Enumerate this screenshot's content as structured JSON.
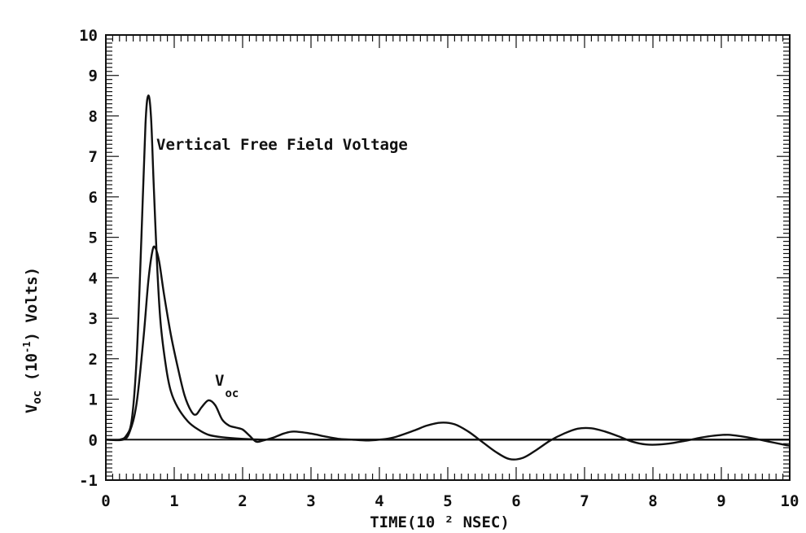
{
  "chart_data": {
    "type": "line",
    "xlabel": "TIME(10 ² NSEC)",
    "ylabel": {
      "main": "V",
      "sub": "oc",
      "rest": "(10",
      "sup": "-1",
      "end": ") Volts)"
    },
    "xlim": [
      0,
      10
    ],
    "ylim": [
      -1,
      10
    ],
    "x_ticks": [
      "0",
      "1",
      "2",
      "3",
      "4",
      "5",
      "6",
      "7",
      "8",
      "9",
      "10"
    ],
    "y_ticks": [
      "-1",
      "0",
      "1",
      "2",
      "3",
      "4",
      "5",
      "6",
      "7",
      "8",
      "9",
      "10"
    ],
    "annotations": {
      "vertical_free_field": "Vertical Free Field Voltage",
      "voc_main": "V",
      "voc_sub": "oc"
    },
    "series": [
      {
        "x": [
          0,
          0.2,
          0.3,
          0.38,
          0.45,
          0.52,
          0.58,
          0.62,
          0.66,
          0.7,
          0.75,
          0.8,
          0.88,
          0.95,
          1.05,
          1.2,
          1.35,
          1.5,
          1.7,
          2.0,
          2.3,
          2.6,
          3.0,
          10.0
        ],
        "y": [
          0,
          0,
          0.1,
          0.5,
          2.0,
          5.0,
          7.8,
          8.5,
          8.0,
          6.3,
          4.3,
          2.9,
          1.8,
          1.2,
          0.8,
          0.45,
          0.25,
          0.12,
          0.06,
          0.02,
          0.0,
          0.0,
          0.0,
          0.0
        ]
      },
      {
        "x": [
          0,
          0.25,
          0.35,
          0.45,
          0.55,
          0.62,
          0.68,
          0.72,
          0.78,
          0.85,
          0.95,
          1.05,
          1.15,
          1.25,
          1.32,
          1.4,
          1.5,
          1.6,
          1.7,
          1.8,
          1.9,
          2.0,
          2.1,
          2.2,
          2.3,
          2.45,
          2.6,
          2.75,
          3.0,
          3.2,
          3.4,
          3.6,
          3.8,
          4.0,
          4.2,
          4.5,
          4.7,
          4.9,
          5.1,
          5.3,
          5.5,
          5.7,
          5.9,
          6.1,
          6.3,
          6.5,
          6.7,
          6.9,
          7.1,
          7.3,
          7.5,
          7.7,
          7.9,
          8.1,
          8.3,
          8.5,
          8.7,
          8.9,
          9.1,
          9.3,
          9.5,
          9.7,
          9.9,
          10.0
        ],
        "y": [
          0,
          0,
          0.2,
          0.9,
          2.5,
          3.9,
          4.65,
          4.75,
          4.4,
          3.6,
          2.6,
          1.8,
          1.1,
          0.7,
          0.62,
          0.8,
          0.97,
          0.85,
          0.5,
          0.35,
          0.3,
          0.25,
          0.1,
          -0.05,
          -0.02,
          0.05,
          0.15,
          0.2,
          0.15,
          0.08,
          0.02,
          0.0,
          -0.02,
          0.0,
          0.05,
          0.22,
          0.35,
          0.42,
          0.38,
          0.2,
          -0.05,
          -0.3,
          -0.48,
          -0.45,
          -0.25,
          -0.02,
          0.15,
          0.27,
          0.28,
          0.2,
          0.08,
          -0.05,
          -0.12,
          -0.12,
          -0.08,
          -0.02,
          0.05,
          0.1,
          0.12,
          0.08,
          0.02,
          -0.05,
          -0.12,
          -0.15
        ]
      }
    ],
    "grid": false
  }
}
